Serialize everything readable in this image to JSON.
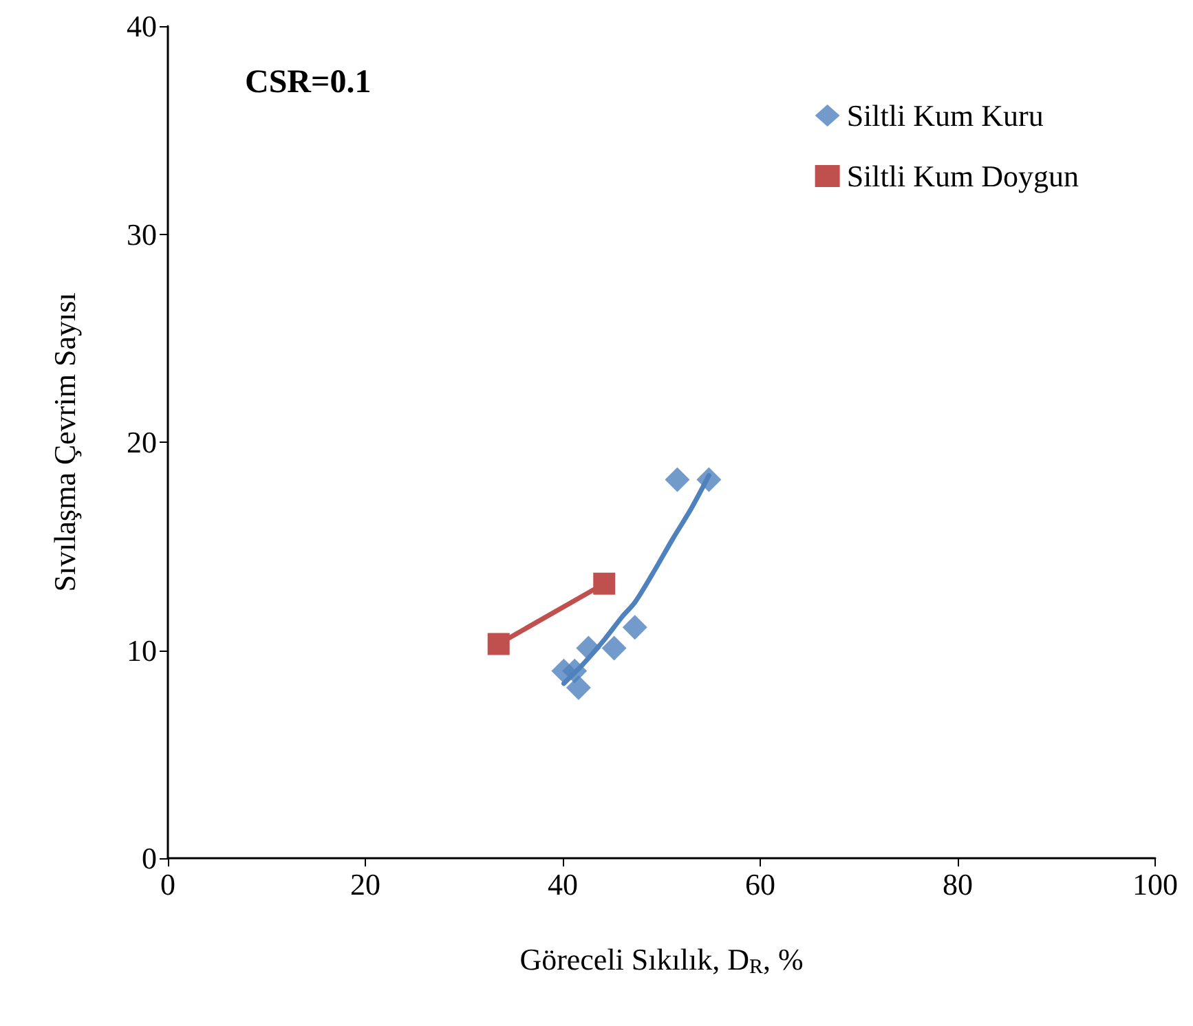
{
  "chart_data": {
    "type": "scatter",
    "xlabel": "Göreceli Sıkılık, D$_{R}$, %",
    "ylabel": "Sıvılaşma Çevrim Sayısı",
    "xlim": [
      0,
      100
    ],
    "xticks": [
      0,
      20,
      40,
      60,
      80,
      100
    ],
    "ylim": [
      0,
      40
    ],
    "yticks": [
      0,
      10,
      20,
      30,
      40
    ],
    "grid": false,
    "legend": "top right",
    "annotations": [
      "CSR=0.1"
    ],
    "series": [
      {
        "name": "Siltli Kum Kuru",
        "marker": "diamond",
        "color": "#4f81bd",
        "x": [
          40.1,
          41.2,
          41.6,
          42.6,
          45.2,
          47.3,
          51.6,
          54.8
        ],
        "values": [
          9.0,
          9.0,
          8.2,
          10.1,
          10.1,
          11.1,
          18.2,
          18.2
        ]
      },
      {
        "type": "line",
        "marker": "none",
        "color": "#4f81bd",
        "x": [
          40.1,
          42,
          44.2,
          46,
          47.3,
          49,
          51.2,
          53,
          54.8
        ],
        "values": [
          8.4,
          9.3,
          10.5,
          11.6,
          12.3,
          13.6,
          15.4,
          16.8,
          18.4
        ]
      },
      {
        "name": "Siltli Kum Doygun",
        "type": "line",
        "marker": "square",
        "color": "#c0504d",
        "x": [
          33.5,
          44.2
        ],
        "values": [
          10.3,
          13.2
        ]
      }
    ]
  }
}
